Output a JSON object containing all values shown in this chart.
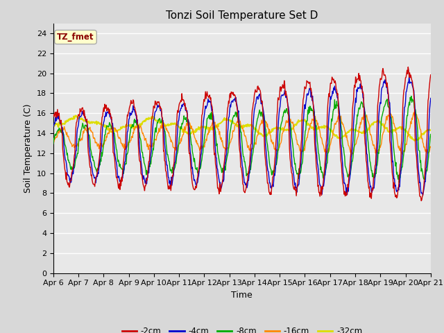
{
  "title": "Tonzi Soil Temperature Set D",
  "xlabel": "Time",
  "ylabel": "Soil Temperature (C)",
  "ylim": [
    0,
    25
  ],
  "yticks": [
    0,
    2,
    4,
    6,
    8,
    10,
    12,
    14,
    16,
    18,
    20,
    22,
    24
  ],
  "xtick_labels": [
    "Apr 6",
    "Apr 7",
    "Apr 8",
    "Apr 9",
    "Apr 10",
    "Apr 11",
    "Apr 12",
    "Apr 13",
    "Apr 14",
    "Apr 15",
    "Apr 16",
    "Apr 17",
    "Apr 18",
    "Apr 19",
    "Apr 20",
    "Apr 21"
  ],
  "legend_labels": [
    "-2cm",
    "-4cm",
    "-8cm",
    "-16cm",
    "-32cm"
  ],
  "line_colors": [
    "#cc0000",
    "#0000cc",
    "#00aa00",
    "#ff8800",
    "#dddd00"
  ],
  "annotation_text": "TZ_fmet",
  "annotation_color": "#8b0000",
  "annotation_bg": "#ffffcc",
  "fig_bg": "#d8d8d8",
  "plot_bg": "#e8e8e8",
  "days": 15,
  "n_points": 720
}
